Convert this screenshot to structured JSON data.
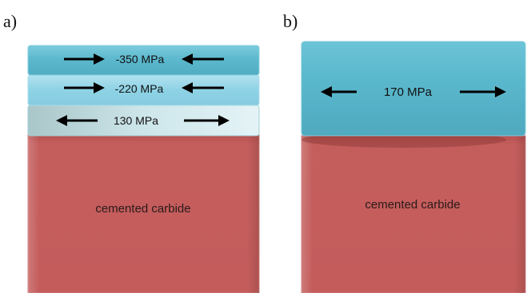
{
  "panels": [
    {
      "label": "a)",
      "substrate": "cemented carbide",
      "layers": [
        {
          "stress": "-350 MPa",
          "direction": "compressive"
        },
        {
          "stress": "-220 MPa",
          "direction": "compressive"
        },
        {
          "stress": "130 MPa",
          "direction": "tensile"
        }
      ]
    },
    {
      "label": "b)",
      "substrate": "cemented carbide",
      "layers": [
        {
          "stress": "170 MPa",
          "direction": "tensile"
        }
      ]
    }
  ],
  "colors": {
    "layer_top": "#5bbad0",
    "layer_mid": "#8fd3e6",
    "layer_bottom": "#c5e3e8",
    "coating_b": "#5ab8ce",
    "substrate": "#c45c5b"
  }
}
